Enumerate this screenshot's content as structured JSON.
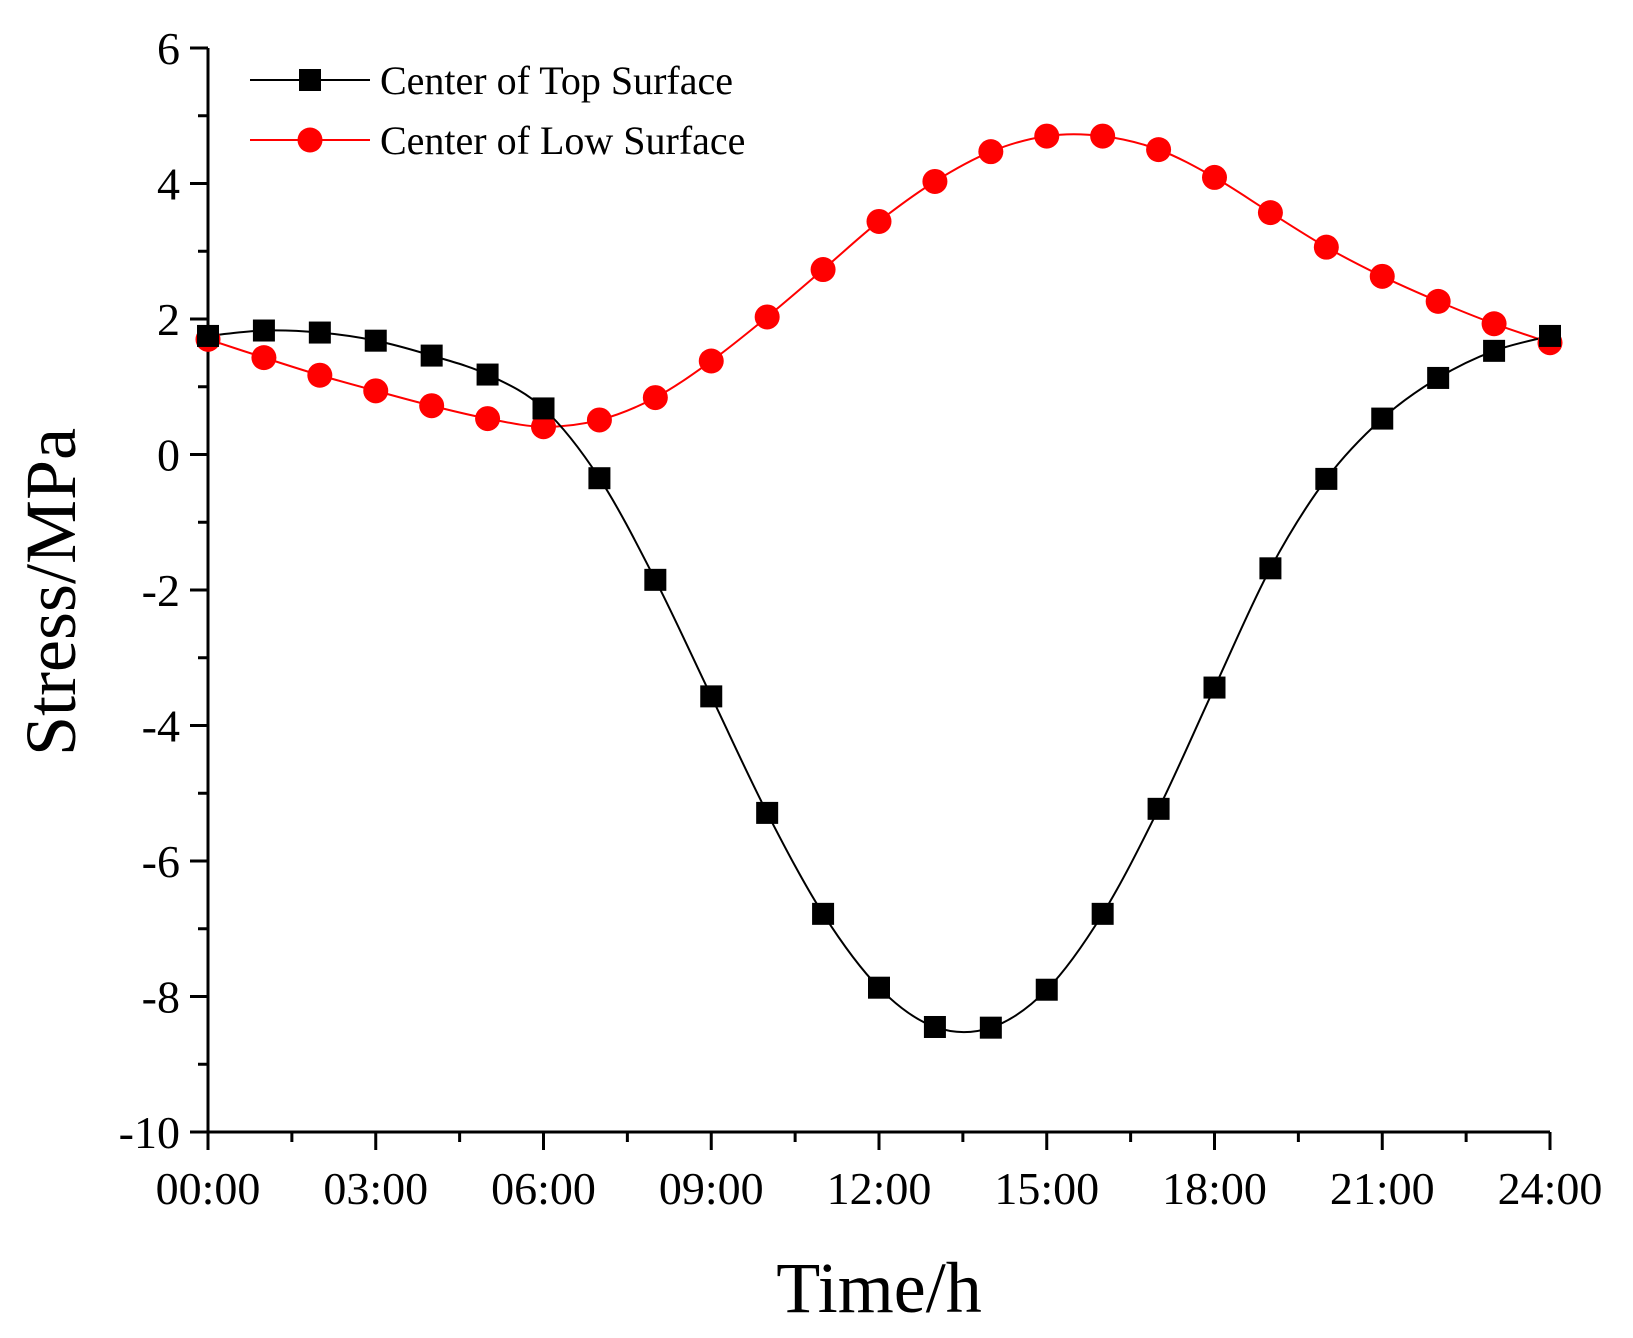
{
  "chart_data": {
    "type": "line",
    "xlabel": "Time/h",
    "ylabel": "Stress/MPa",
    "xlim": [
      0,
      24
    ],
    "ylim": [
      -10,
      6
    ],
    "grid": false,
    "legend_position": "top-left",
    "x_ticks": [
      0,
      3,
      6,
      9,
      12,
      15,
      18,
      21,
      24
    ],
    "x_tick_labels": [
      "00:00",
      "03:00",
      "06:00",
      "09:00",
      "12:00",
      "15:00",
      "18:00",
      "21:00",
      "24:00"
    ],
    "y_ticks": [
      -10,
      -8,
      -6,
      -4,
      -2,
      0,
      2,
      4,
      6
    ],
    "y_tick_labels": [
      "-10",
      "-8",
      "-6",
      "-4",
      "-2",
      "0",
      "2",
      "4",
      "6"
    ],
    "x": [
      0,
      1,
      2,
      3,
      4,
      5,
      6,
      7,
      8,
      9,
      10,
      11,
      12,
      13,
      14,
      15,
      16,
      17,
      18,
      19,
      20,
      21,
      22,
      23,
      24
    ],
    "series": [
      {
        "name": "Center of Top Surface",
        "color": "#000000",
        "marker": "square",
        "values": [
          1.75,
          1.83,
          1.8,
          1.68,
          1.46,
          1.18,
          0.68,
          -0.35,
          -1.85,
          -3.57,
          -5.29,
          -6.78,
          -7.87,
          -8.45,
          -8.46,
          -7.9,
          -6.78,
          -5.23,
          -3.44,
          -1.68,
          -0.36,
          0.53,
          1.13,
          1.53,
          1.75
        ]
      },
      {
        "name": "Center of Low Surface",
        "color": "#ff0000",
        "marker": "circle",
        "values": [
          1.7,
          1.43,
          1.17,
          0.94,
          0.72,
          0.53,
          0.41,
          0.51,
          0.84,
          1.38,
          2.03,
          2.73,
          3.44,
          4.03,
          4.47,
          4.7,
          4.7,
          4.5,
          4.09,
          3.57,
          3.06,
          2.63,
          2.26,
          1.93,
          1.65
        ]
      }
    ]
  }
}
